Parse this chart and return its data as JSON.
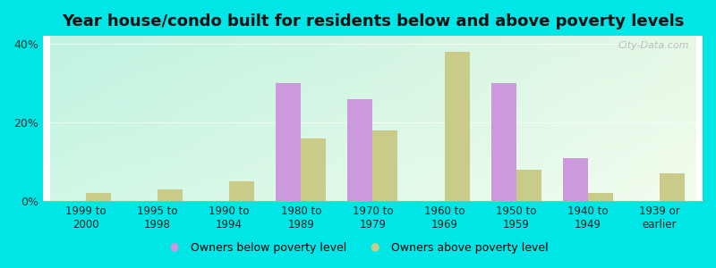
{
  "title": "Year house/condo built for residents below and above poverty levels",
  "categories": [
    "1999 to\n2000",
    "1995 to\n1998",
    "1990 to\n1994",
    "1980 to\n1989",
    "1970 to\n1979",
    "1960 to\n1969",
    "1950 to\n1959",
    "1940 to\n1949",
    "1939 or\nearlier"
  ],
  "below_poverty": [
    0.0,
    0.0,
    0.0,
    30.0,
    26.0,
    0.0,
    30.0,
    11.0,
    0.0
  ],
  "above_poverty": [
    2.0,
    3.0,
    5.0,
    16.0,
    18.0,
    38.0,
    8.0,
    2.0,
    7.0
  ],
  "below_color": "#cc99dd",
  "above_color": "#c8cc88",
  "background_top_left": "#a0e8e8",
  "background_bottom_right": "#e8f5e8",
  "outer_background": "#00e5e5",
  "ylim": [
    0,
    42
  ],
  "yticks": [
    0,
    20,
    40
  ],
  "ytick_labels": [
    "0%",
    "20%",
    "40%"
  ],
  "legend_below": "Owners below poverty level",
  "legend_above": "Owners above poverty level",
  "title_fontsize": 13,
  "bar_width": 0.35,
  "watermark": "City-Data.com"
}
